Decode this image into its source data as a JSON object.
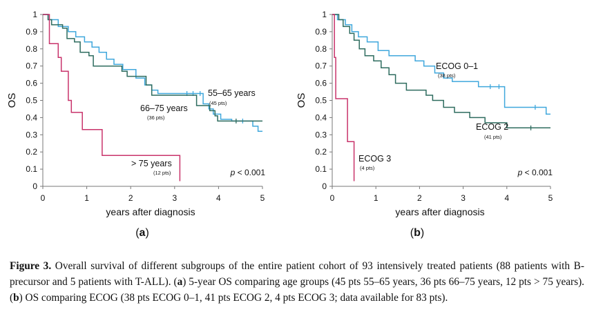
{
  "figure": {
    "label": "Figure 3.",
    "caption_parts": [
      {
        "text": "Figure 3.",
        "bold": true
      },
      {
        "text": " Overall survival of different subgroups of the entire patient cohort of 93 intensively treated patients (88 patients with B-precursor and 5 patients with T-ALL). (",
        "bold": false
      },
      {
        "text": "a",
        "bold": true
      },
      {
        "text": ") 5-year OS comparing age groups (45 pts 55–65 years, 36 pts 66–75 years, 12 pts > 75 years). (",
        "bold": false
      },
      {
        "text": "b",
        "bold": true
      },
      {
        "text": ") OS comparing ECOG (38 pts ECOG 0–1, 41 pts ECOG 2, 4 pts ECOG 3; data available for 83 pts).",
        "bold": false
      }
    ]
  },
  "chart_data": [
    {
      "type": "line",
      "subtype": "kaplan-meier",
      "panel_label": "a",
      "xlabel": "years after diagnosis",
      "ylabel": "OS",
      "xlim": [
        0,
        5
      ],
      "ylim": [
        0,
        1
      ],
      "xticks": [
        "0",
        "1",
        "2",
        "3",
        "4",
        "5"
      ],
      "yticks": [
        "0",
        "0.1",
        "0.2",
        "0.3",
        "0.4",
        "0.5",
        "0.6",
        "0.7",
        "0.8",
        "0.9",
        "1"
      ],
      "annotation": {
        "prefix": "p",
        "text": " < 0.001"
      },
      "series": [
        {
          "name": "55–65 years",
          "n_label": "(45 pts)",
          "color": "#3fa7dc",
          "points": [
            [
              0,
              1
            ],
            [
              0.12,
              1
            ],
            [
              0.12,
              0.97
            ],
            [
              0.35,
              0.97
            ],
            [
              0.35,
              0.93
            ],
            [
              0.58,
              0.93
            ],
            [
              0.58,
              0.9
            ],
            [
              0.75,
              0.9
            ],
            [
              0.75,
              0.87
            ],
            [
              0.95,
              0.87
            ],
            [
              0.95,
              0.84
            ],
            [
              1.12,
              0.84
            ],
            [
              1.12,
              0.81
            ],
            [
              1.28,
              0.81
            ],
            [
              1.28,
              0.78
            ],
            [
              1.45,
              0.78
            ],
            [
              1.45,
              0.74
            ],
            [
              1.62,
              0.74
            ],
            [
              1.62,
              0.71
            ],
            [
              1.82,
              0.71
            ],
            [
              1.82,
              0.68
            ],
            [
              2.12,
              0.68
            ],
            [
              2.12,
              0.63
            ],
            [
              2.32,
              0.63
            ],
            [
              2.32,
              0.59
            ],
            [
              2.48,
              0.59
            ],
            [
              2.48,
              0.56
            ],
            [
              2.62,
              0.56
            ],
            [
              2.62,
              0.54
            ],
            [
              3.65,
              0.54
            ],
            [
              3.65,
              0.48
            ],
            [
              3.78,
              0.48
            ],
            [
              3.78,
              0.45
            ],
            [
              3.88,
              0.45
            ],
            [
              3.88,
              0.42
            ],
            [
              4.05,
              0.42
            ],
            [
              4.05,
              0.39
            ],
            [
              4.3,
              0.39
            ],
            [
              4.3,
              0.38
            ],
            [
              4.78,
              0.38
            ],
            [
              4.78,
              0.35
            ],
            [
              4.9,
              0.35
            ],
            [
              4.9,
              0.32
            ],
            [
              5,
              0.32
            ]
          ],
          "censors": [
            [
              3.28,
              0.54
            ],
            [
              3.42,
              0.54
            ],
            [
              3.58,
              0.54
            ],
            [
              4.55,
              0.38
            ]
          ]
        },
        {
          "name": "66–75 years",
          "n_label": "(36 pts)",
          "color": "#2d6b5e",
          "points": [
            [
              0,
              1
            ],
            [
              0.12,
              1
            ],
            [
              0.12,
              0.97
            ],
            [
              0.2,
              0.97
            ],
            [
              0.2,
              0.94
            ],
            [
              0.45,
              0.94
            ],
            [
              0.45,
              0.92
            ],
            [
              0.55,
              0.92
            ],
            [
              0.55,
              0.86
            ],
            [
              0.72,
              0.86
            ],
            [
              0.72,
              0.84
            ],
            [
              0.85,
              0.84
            ],
            [
              0.85,
              0.78
            ],
            [
              1.05,
              0.78
            ],
            [
              1.05,
              0.76
            ],
            [
              1.15,
              0.76
            ],
            [
              1.15,
              0.7
            ],
            [
              1.8,
              0.7
            ],
            [
              1.8,
              0.67
            ],
            [
              1.92,
              0.67
            ],
            [
              1.92,
              0.64
            ],
            [
              2.35,
              0.64
            ],
            [
              2.35,
              0.59
            ],
            [
              2.48,
              0.59
            ],
            [
              2.48,
              0.53
            ],
            [
              3.5,
              0.53
            ],
            [
              3.5,
              0.47
            ],
            [
              3.8,
              0.47
            ],
            [
              3.8,
              0.44
            ],
            [
              3.92,
              0.44
            ],
            [
              3.92,
              0.41
            ],
            [
              3.98,
              0.41
            ],
            [
              3.98,
              0.38
            ],
            [
              5,
              0.38
            ]
          ],
          "censors": [
            [
              4.4,
              0.38
            ]
          ]
        },
        {
          "name": "> 75 years",
          "n_label": "(12 pts)",
          "color": "#c8326a",
          "points": [
            [
              0,
              1
            ],
            [
              0.15,
              1
            ],
            [
              0.15,
              0.83
            ],
            [
              0.35,
              0.83
            ],
            [
              0.35,
              0.75
            ],
            [
              0.42,
              0.75
            ],
            [
              0.42,
              0.67
            ],
            [
              0.58,
              0.67
            ],
            [
              0.58,
              0.5
            ],
            [
              0.65,
              0.5
            ],
            [
              0.65,
              0.43
            ],
            [
              0.9,
              0.43
            ],
            [
              0.9,
              0.33
            ],
            [
              1.35,
              0.33
            ],
            [
              1.35,
              0.18
            ],
            [
              3.12,
              0.18
            ],
            [
              3.12,
              0.03
            ]
          ],
          "censors": []
        }
      ]
    },
    {
      "type": "line",
      "subtype": "kaplan-meier",
      "panel_label": "b",
      "xlabel": "years after diagnosis",
      "ylabel": "OS",
      "xlim": [
        0,
        5
      ],
      "ylim": [
        0,
        1
      ],
      "xticks": [
        "0",
        "1",
        "2",
        "3",
        "4",
        "5"
      ],
      "yticks": [
        "0",
        "0.1",
        "0.2",
        "0.3",
        "0.4",
        "0.5",
        "0.6",
        "0.7",
        "0.8",
        "0.9",
        "1"
      ],
      "annotation": {
        "prefix": "p",
        "text": " < 0.001"
      },
      "series": [
        {
          "name": "ECOG 0–1",
          "n_label": "(38 pts)",
          "color": "#3fa7dc",
          "points": [
            [
              0,
              1
            ],
            [
              0.12,
              1
            ],
            [
              0.12,
              0.97
            ],
            [
              0.3,
              0.97
            ],
            [
              0.3,
              0.94
            ],
            [
              0.45,
              0.94
            ],
            [
              0.45,
              0.9
            ],
            [
              0.6,
              0.9
            ],
            [
              0.6,
              0.87
            ],
            [
              0.8,
              0.87
            ],
            [
              0.8,
              0.84
            ],
            [
              1.05,
              0.84
            ],
            [
              1.05,
              0.79
            ],
            [
              1.3,
              0.79
            ],
            [
              1.3,
              0.76
            ],
            [
              1.9,
              0.76
            ],
            [
              1.9,
              0.73
            ],
            [
              2.1,
              0.73
            ],
            [
              2.1,
              0.7
            ],
            [
              2.35,
              0.7
            ],
            [
              2.35,
              0.66
            ],
            [
              2.55,
              0.66
            ],
            [
              2.55,
              0.63
            ],
            [
              2.75,
              0.63
            ],
            [
              2.75,
              0.61
            ],
            [
              3.35,
              0.61
            ],
            [
              3.35,
              0.58
            ],
            [
              3.95,
              0.58
            ],
            [
              3.95,
              0.46
            ],
            [
              4.9,
              0.46
            ],
            [
              4.9,
              0.42
            ],
            [
              5,
              0.42
            ]
          ],
          "censors": [
            [
              3.62,
              0.58
            ],
            [
              3.82,
              0.58
            ],
            [
              4.65,
              0.46
            ]
          ]
        },
        {
          "name": "ECOG 2",
          "n_label": "(41 pts)",
          "color": "#2d6b5e",
          "points": [
            [
              0,
              1
            ],
            [
              0.15,
              1
            ],
            [
              0.15,
              0.97
            ],
            [
              0.25,
              0.97
            ],
            [
              0.25,
              0.93
            ],
            [
              0.4,
              0.93
            ],
            [
              0.4,
              0.89
            ],
            [
              0.5,
              0.89
            ],
            [
              0.5,
              0.85
            ],
            [
              0.62,
              0.85
            ],
            [
              0.62,
              0.8
            ],
            [
              0.75,
              0.8
            ],
            [
              0.75,
              0.76
            ],
            [
              0.95,
              0.76
            ],
            [
              0.95,
              0.73
            ],
            [
              1.12,
              0.73
            ],
            [
              1.12,
              0.69
            ],
            [
              1.3,
              0.69
            ],
            [
              1.3,
              0.65
            ],
            [
              1.45,
              0.65
            ],
            [
              1.45,
              0.6
            ],
            [
              1.7,
              0.6
            ],
            [
              1.7,
              0.56
            ],
            [
              2.15,
              0.56
            ],
            [
              2.15,
              0.53
            ],
            [
              2.3,
              0.53
            ],
            [
              2.3,
              0.5
            ],
            [
              2.55,
              0.5
            ],
            [
              2.55,
              0.46
            ],
            [
              2.8,
              0.46
            ],
            [
              2.8,
              0.43
            ],
            [
              3.15,
              0.43
            ],
            [
              3.15,
              0.4
            ],
            [
              3.5,
              0.4
            ],
            [
              3.5,
              0.37
            ],
            [
              4.0,
              0.37
            ],
            [
              4.0,
              0.34
            ],
            [
              5,
              0.34
            ]
          ],
          "censors": [
            [
              4.55,
              0.34
            ]
          ]
        },
        {
          "name": "ECOG 3",
          "n_label": "(4 pts)",
          "color": "#c8326a",
          "points": [
            [
              0,
              1
            ],
            [
              0.05,
              1
            ],
            [
              0.05,
              0.75
            ],
            [
              0.08,
              0.75
            ],
            [
              0.08,
              0.51
            ],
            [
              0.35,
              0.51
            ],
            [
              0.35,
              0.26
            ],
            [
              0.5,
              0.26
            ],
            [
              0.5,
              0.03
            ]
          ],
          "censors": []
        }
      ]
    }
  ]
}
